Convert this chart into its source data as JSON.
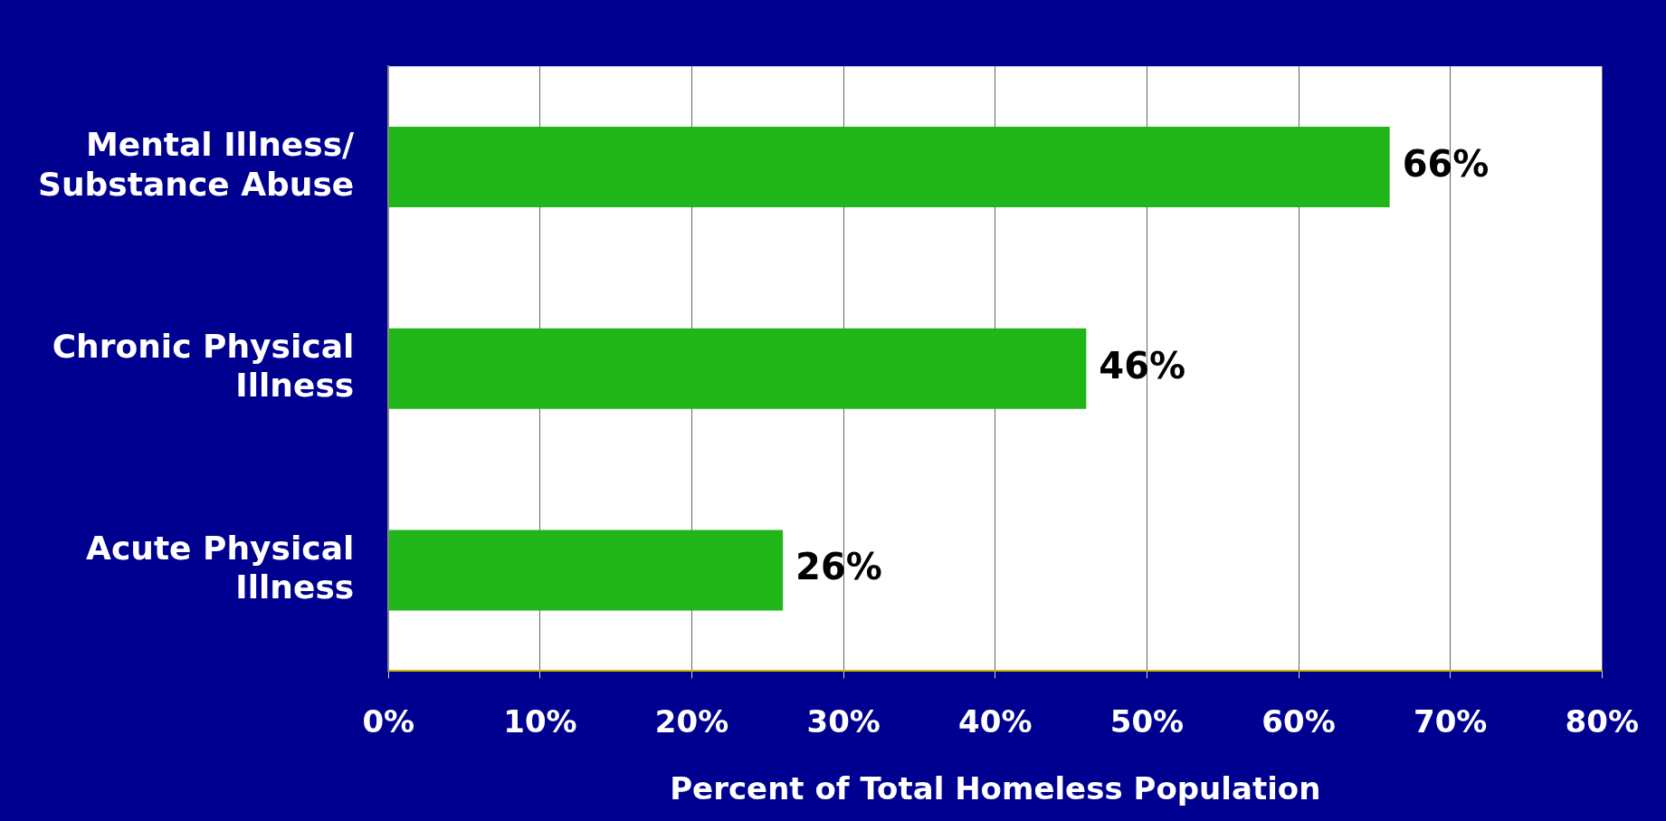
{
  "chart_data": {
    "type": "bar",
    "orientation": "horizontal",
    "xlabel": "Percent of Total Homeless Population",
    "categories": [
      "Mental Illness/ Substance Abuse",
      "Chronic Physical Illness",
      "Acute Physical Illness"
    ],
    "values": [
      66,
      46,
      26
    ],
    "value_labels": [
      "66%",
      "46%",
      "26%"
    ],
    "color": "#20b61a",
    "xlim": [
      0,
      80
    ],
    "xticks": [
      {
        "value": 0,
        "label": "0%"
      },
      {
        "value": 10,
        "label": "10%"
      },
      {
        "value": 20,
        "label": "20%"
      },
      {
        "value": 30,
        "label": "30%"
      },
      {
        "value": 40,
        "label": "40%"
      },
      {
        "value": 50,
        "label": "50%"
      },
      {
        "value": 60,
        "label": "60%"
      },
      {
        "value": 70,
        "label": "70%"
      },
      {
        "value": 80,
        "label": "80%"
      }
    ],
    "grid": "x",
    "legend": false
  }
}
